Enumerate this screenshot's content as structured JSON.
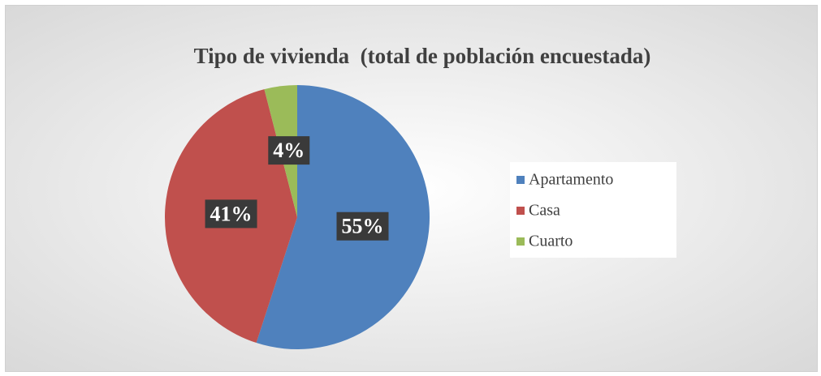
{
  "chart_data": {
    "type": "pie",
    "title": "Tipo de vivienda  (total de población encuestada)",
    "categories": [
      "Apartamento",
      "Casa",
      "Cuarto"
    ],
    "values": [
      55,
      41,
      4
    ],
    "value_labels": [
      "55%",
      "41%",
      "4%"
    ],
    "colors": [
      "#4f81bd",
      "#c0504d",
      "#9bbb59"
    ],
    "legend": "right"
  }
}
